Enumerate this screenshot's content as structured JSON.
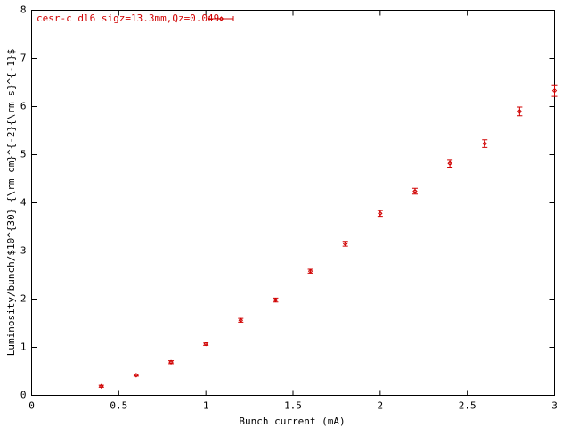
{
  "chart_data": {
    "type": "errorbar",
    "xlabel": "Bunch current (mA)",
    "ylabel": "Luminosity/bunch/$10^{30} {\\rm cm}^{-2}{\\rm s}^{-1}$",
    "series": [
      {
        "name": "cesr-c dl6 sigz=13.3mm,Qz=0.049",
        "color": "#d00000",
        "x": [
          0.4,
          0.6,
          0.8,
          1.0,
          1.2,
          1.4,
          1.6,
          1.8,
          2.0,
          2.2,
          2.4,
          2.6,
          2.8,
          3.0
        ],
        "values": [
          0.19,
          0.42,
          0.69,
          1.07,
          1.56,
          1.98,
          2.58,
          3.15,
          3.78,
          4.24,
          4.82,
          5.23,
          5.9,
          6.33
        ],
        "errors": [
          0.02,
          0.02,
          0.03,
          0.03,
          0.04,
          0.04,
          0.04,
          0.05,
          0.06,
          0.06,
          0.08,
          0.08,
          0.09,
          0.12
        ]
      }
    ],
    "xlim": [
      0,
      3
    ],
    "xticks": [
      0,
      0.5,
      1,
      1.5,
      2,
      2.5,
      3
    ],
    "ylim": [
      0,
      8
    ],
    "yticks": [
      0,
      1,
      2,
      3,
      4,
      5,
      6,
      7,
      8
    ],
    "grid": false,
    "legend": "top-left"
  }
}
